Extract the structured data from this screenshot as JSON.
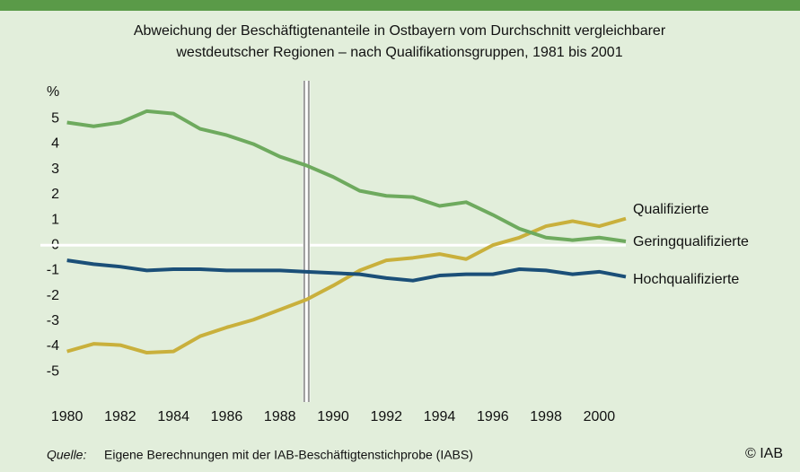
{
  "chart_data": {
    "type": "line",
    "title": "Abweichung der Beschäftigtenanteile in Ostbayern vom Durchschnitt vergleichbarer",
    "subtitle": "westdeutscher Regionen – nach Qualifikationsgruppen, 1981 bis 2001",
    "y_label": "%",
    "x": [
      1980,
      1981,
      1982,
      1983,
      1984,
      1985,
      1986,
      1987,
      1988,
      1989,
      1990,
      1991,
      1992,
      1993,
      1994,
      1995,
      1996,
      1997,
      1998,
      1999,
      2000,
      2001
    ],
    "series": [
      {
        "name": "Qualifizierte",
        "color": "#c9b03c",
        "values": [
          -4.2,
          -3.9,
          -3.95,
          -4.25,
          -4.2,
          -3.6,
          -3.25,
          -2.95,
          -2.55,
          -2.15,
          -1.6,
          -1.0,
          -0.6,
          -0.5,
          -0.35,
          -0.55,
          0.0,
          0.3,
          0.75,
          0.95,
          0.75,
          1.05
        ]
      },
      {
        "name": "Geringqualifizierte",
        "color": "#6eaa5e",
        "values": [
          4.85,
          4.7,
          4.85,
          5.3,
          5.2,
          4.6,
          4.35,
          4.0,
          3.5,
          3.15,
          2.7,
          2.15,
          1.95,
          1.9,
          1.55,
          1.7,
          1.2,
          0.65,
          0.3,
          0.2,
          0.3,
          0.15
        ]
      },
      {
        "name": "Hochqualifizierte",
        "color": "#1b4f78",
        "values": [
          -0.6,
          -0.75,
          -0.85,
          -1.0,
          -0.95,
          -0.95,
          -1.0,
          -1.0,
          -1.0,
          -1.05,
          -1.1,
          -1.15,
          -1.3,
          -1.4,
          -1.2,
          -1.15,
          -1.15,
          -0.95,
          -1.0,
          -1.15,
          -1.05,
          -1.25
        ]
      }
    ],
    "xlim": [
      1979,
      2001
    ],
    "ylim": [
      -6.2,
      6.5
    ],
    "xticks": [
      1980,
      1982,
      1984,
      1986,
      1988,
      1990,
      1992,
      1994,
      1996,
      1998,
      2000
    ],
    "yticks": [
      5,
      4,
      3,
      2,
      1,
      0,
      -1,
      -2,
      -3,
      -4,
      -5
    ],
    "vline": 1989,
    "source_label": "Quelle:",
    "source": "Eigene Berechnungen mit der IAB-Beschäftigtenstichprobe (IABS)",
    "copyright": "© IAB"
  }
}
